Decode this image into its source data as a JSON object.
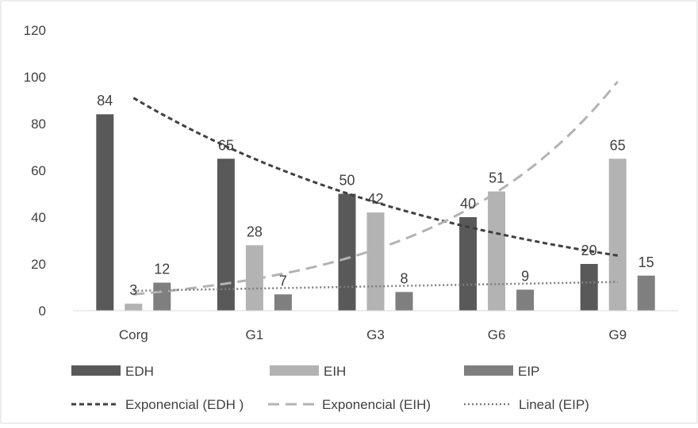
{
  "chart_data": {
    "type": "bar",
    "categories": [
      "Corg",
      "G1",
      "G3",
      "G6",
      "G9"
    ],
    "ylim": [
      0,
      120
    ],
    "yticks": [
      0,
      20,
      40,
      60,
      80,
      100,
      120
    ],
    "grid": false,
    "legend_position": "bottom",
    "series": [
      {
        "name": "EDH",
        "values": [
          84,
          65,
          50,
          40,
          20
        ],
        "color": "#595959"
      },
      {
        "name": "EIH",
        "values": [
          3,
          28,
          42,
          51,
          65
        ],
        "color": "#b3b3b3"
      },
      {
        "name": "EIP",
        "values": [
          12,
          7,
          8,
          9,
          15
        ],
        "color": "#7f7f7f"
      }
    ],
    "trendlines": [
      {
        "name": "Exponencial (EDH )",
        "series": "EDH",
        "kind": "exponential",
        "style": "dashed",
        "color": "#404040",
        "points": [
          [
            0,
            91
          ],
          [
            1,
            68.5
          ],
          [
            2,
            51.5
          ],
          [
            3,
            33
          ],
          [
            4,
            23.6
          ]
        ]
      },
      {
        "name": "Exponencial (EIH)",
        "series": "EIH",
        "kind": "exponential",
        "style": "long-dashed",
        "color": "#b3b3b3",
        "points": [
          [
            0,
            7
          ],
          [
            1,
            12.8
          ],
          [
            2,
            23.5
          ],
          [
            3,
            43.5
          ],
          [
            4,
            98
          ]
        ]
      },
      {
        "name": "Lineal (EIP)",
        "series": "EIP",
        "kind": "linear",
        "style": "dotted",
        "color": "#7f7f7f",
        "points": [
          [
            0,
            8.5
          ],
          [
            4,
            12.3
          ]
        ]
      }
    ]
  }
}
